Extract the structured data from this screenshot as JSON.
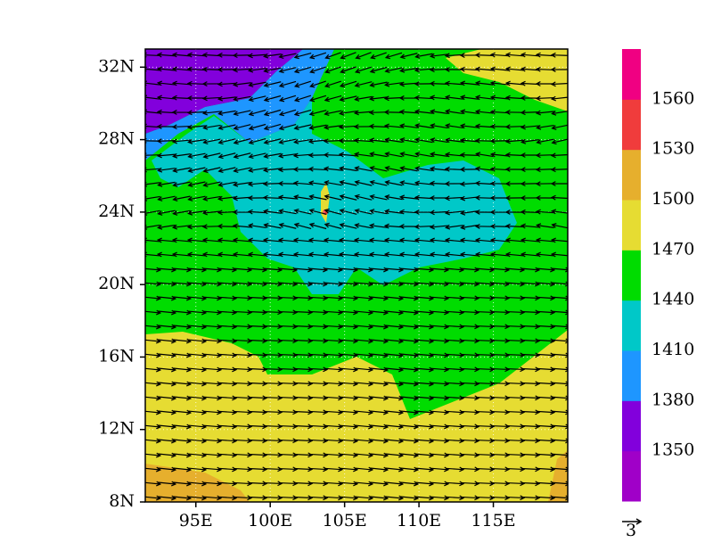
{
  "map": {
    "xlim": [
      91.6,
      120
    ],
    "ylim": [
      8,
      33
    ],
    "yticks": [
      {
        "value": 32,
        "label": "32N"
      },
      {
        "value": 28,
        "label": "28N"
      },
      {
        "value": 24,
        "label": "24N"
      },
      {
        "value": 20,
        "label": "20N"
      },
      {
        "value": 16,
        "label": "16N"
      },
      {
        "value": 12,
        "label": "12N"
      },
      {
        "value": 8,
        "label": "8N"
      }
    ],
    "xticks": [
      {
        "value": 95,
        "label": "95E"
      },
      {
        "value": 100,
        "label": "100E"
      },
      {
        "value": 105,
        "label": "105E"
      },
      {
        "value": 110,
        "label": "110E"
      },
      {
        "value": 115,
        "label": "115E"
      }
    ],
    "grid": true,
    "colorbar": {
      "levels": [
        1350,
        1380,
        1410,
        1440,
        1470,
        1500,
        1530,
        1560
      ],
      "colors": [
        "#a000c8",
        "#8200dc",
        "#1e96ff",
        "#00c8c8",
        "#00dc00",
        "#e6dc32",
        "#e6af2d",
        "#f03c3c",
        "#f00082"
      ]
    },
    "reference_vector": 3
  }
}
